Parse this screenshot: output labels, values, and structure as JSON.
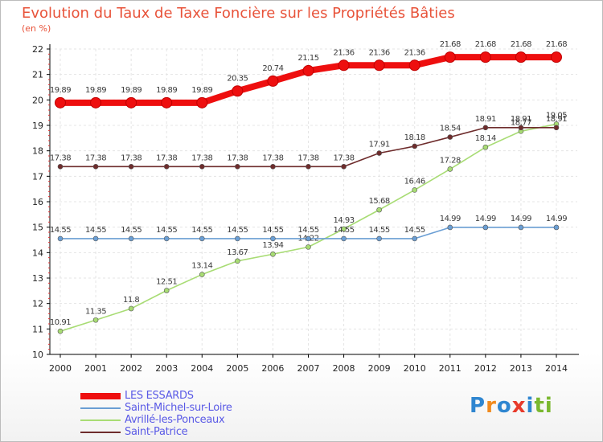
{
  "title": "Evolution du Taux de Taxe Foncière sur les Propriétés Bâties",
  "unit": "(en %)",
  "logo": {
    "text": "Proxiti",
    "colors": [
      "#2f86d0",
      "#f08a1e",
      "#2f86d0",
      "#e83a2b",
      "#2f86d0",
      "#7ab82f",
      "#7ab82f"
    ]
  },
  "chart_data": {
    "type": "line",
    "title": "Evolution du Taux de Taxe Foncière sur les Propriétés Bâties",
    "ylabel": "(en %)",
    "xlabel": "",
    "x": [
      "2000",
      "2001",
      "2002",
      "2003",
      "2004",
      "2005",
      "2006",
      "2007",
      "2008",
      "2009",
      "2010",
      "2011",
      "2012",
      "2013",
      "2014"
    ],
    "ylim": [
      10,
      22
    ],
    "yticks": [
      10,
      11,
      12,
      13,
      14,
      15,
      16,
      17,
      18,
      19,
      20,
      21,
      22
    ],
    "series": [
      {
        "name": "LES ESSARDS",
        "color": "#ee0f0f",
        "values": [
          19.89,
          19.89,
          19.89,
          19.89,
          19.89,
          20.35,
          20.74,
          21.15,
          21.36,
          21.36,
          21.36,
          21.68,
          21.68,
          21.68,
          21.68
        ]
      },
      {
        "name": "Saint-Michel-sur-Loire",
        "color": "#6a9ed4",
        "values": [
          14.55,
          14.55,
          14.55,
          14.55,
          14.55,
          14.55,
          14.55,
          14.55,
          14.55,
          14.55,
          14.55,
          14.99,
          14.99,
          14.99,
          14.99
        ]
      },
      {
        "name": "Avrillé-les-Ponceaux",
        "color": "#a8dc74",
        "values": [
          10.91,
          11.35,
          11.8,
          12.51,
          13.14,
          13.67,
          13.94,
          14.22,
          14.93,
          15.68,
          16.46,
          17.28,
          18.14,
          18.77,
          19.05
        ]
      },
      {
        "name": "Saint-Patrice",
        "color": "#6e2c2c",
        "values": [
          17.38,
          17.38,
          17.38,
          17.38,
          17.38,
          17.38,
          17.38,
          17.38,
          17.38,
          17.91,
          18.18,
          18.54,
          18.91,
          18.91,
          18.91
        ]
      }
    ]
  }
}
